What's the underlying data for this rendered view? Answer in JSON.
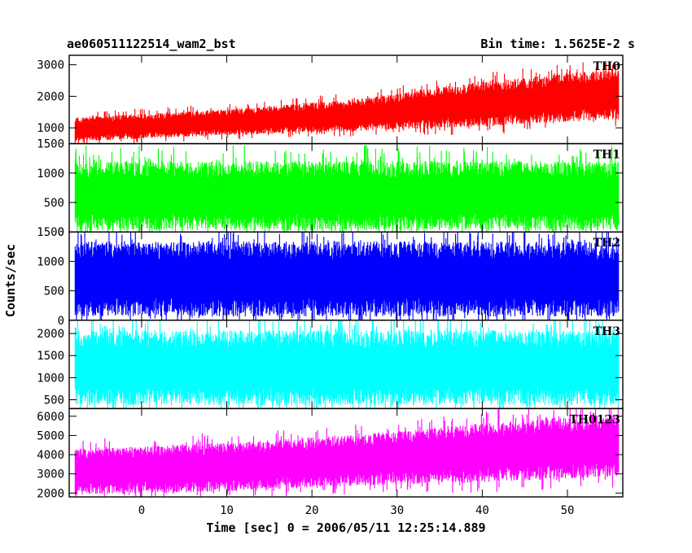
{
  "chart_data": {
    "type": "line",
    "title": "ae060511122514_wam2_bst",
    "bin_time_label": "Bin time: 1.5625E-2 s",
    "xlabel": "Time [sec] 0 = 2006/05/11 12:25:14.889",
    "ylabel": "Counts/sec",
    "xlim": [
      -8.5,
      56.5
    ],
    "data_x_range": [
      -7.8,
      56.0
    ],
    "x_ticks": [
      0,
      10,
      20,
      30,
      40,
      50
    ],
    "panels": [
      {
        "name": "TH0",
        "color": "#ff0000",
        "ylim": [
          500,
          3300
        ],
        "y_ticks": [
          1000,
          2000,
          3000
        ],
        "y_tick_labels": [
          "1000",
          "2000",
          "3000"
        ],
        "y_bottom_label": "1500",
        "trend_x": [
          -7.8,
          10,
          25,
          40,
          56
        ],
        "trend_low": [
          600,
          800,
          950,
          1100,
          1350
        ],
        "trend_high": [
          1300,
          1550,
          1850,
          2400,
          2800
        ]
      },
      {
        "name": "TH1",
        "color": "#00ff00",
        "ylim": [
          0,
          1500
        ],
        "y_ticks": [
          500,
          1000
        ],
        "y_tick_labels": [
          "500",
          "1000"
        ],
        "y_bottom_label": "0",
        "trend_x": [
          -7.8,
          56
        ],
        "trend_low": [
          80,
          80
        ],
        "trend_high": [
          1150,
          1150
        ]
      },
      {
        "name": "TH2",
        "color": "#0000ff",
        "ylim": [
          0,
          1500
        ],
        "y_ticks": [
          0,
          500,
          1000
        ],
        "y_tick_labels": [
          "0",
          "500",
          "1000"
        ],
        "y_bottom_label": "",
        "y_top_label": "1500",
        "trend_x": [
          -7.8,
          56
        ],
        "trend_low": [
          120,
          120
        ],
        "trend_high": [
          1280,
          1280
        ]
      },
      {
        "name": "TH3",
        "color": "#00ffff",
        "ylim": [
          300,
          2300
        ],
        "y_ticks": [
          500,
          1000,
          1500,
          2000
        ],
        "y_tick_labels": [
          "500",
          "1000",
          "1500",
          "2000"
        ],
        "y_bottom_label": "",
        "trend_x": [
          -7.8,
          56
        ],
        "trend_low": [
          450,
          450
        ],
        "trend_high": [
          2000,
          2000
        ]
      },
      {
        "name": "TH0123",
        "color": "#ff00ff",
        "ylim": [
          1800,
          6400
        ],
        "y_ticks": [
          2000,
          3000,
          4000,
          5000,
          6000
        ],
        "y_tick_labels": [
          "2000",
          "3000",
          "4000",
          "5000",
          "6000"
        ],
        "y_bottom_label": "",
        "trend_x": [
          -7.8,
          10,
          25,
          40,
          56
        ],
        "trend_low": [
          2000,
          2200,
          2500,
          2700,
          3000
        ],
        "trend_high": [
          4200,
          4500,
          4900,
          5500,
          6000
        ]
      }
    ]
  }
}
